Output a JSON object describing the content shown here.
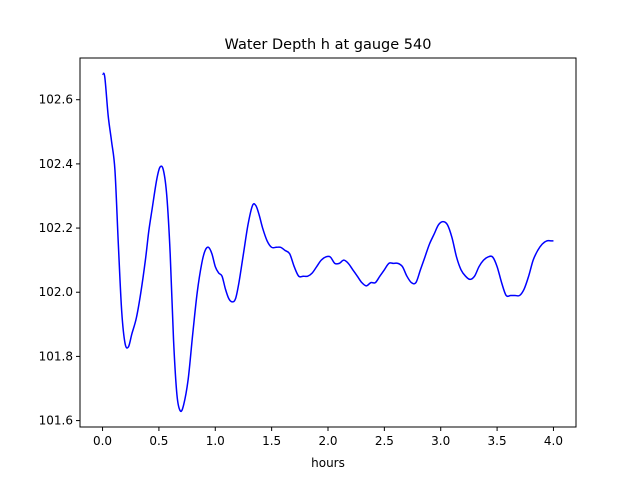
{
  "chart_data": {
    "type": "line",
    "title": "Water Depth h at gauge 540",
    "xlabel": "hours",
    "ylabel": "",
    "xlim": [
      -0.2,
      4.2
    ],
    "ylim": [
      101.58,
      102.73
    ],
    "xticks": [
      0.0,
      0.5,
      1.0,
      1.5,
      2.0,
      2.5,
      3.0,
      3.5,
      4.0
    ],
    "xtick_labels": [
      "0.0",
      "0.5",
      "1.0",
      "1.5",
      "2.0",
      "2.5",
      "3.0",
      "3.5",
      "4.0"
    ],
    "yticks": [
      101.6,
      101.8,
      102.0,
      102.2,
      102.4,
      102.6
    ],
    "ytick_labels": [
      "101.6",
      "101.8",
      "102.0",
      "102.2",
      "102.4",
      "102.6"
    ],
    "grid": false,
    "legend": false,
    "series": [
      {
        "color": "#0000ff",
        "points": [
          [
            0.0,
            102.68
          ],
          [
            0.02,
            102.67
          ],
          [
            0.05,
            102.55
          ],
          [
            0.08,
            102.47
          ],
          [
            0.11,
            102.38
          ],
          [
            0.14,
            102.15
          ],
          [
            0.17,
            101.94
          ],
          [
            0.2,
            101.84
          ],
          [
            0.23,
            101.83
          ],
          [
            0.26,
            101.87
          ],
          [
            0.3,
            101.92
          ],
          [
            0.34,
            102.0
          ],
          [
            0.38,
            102.1
          ],
          [
            0.41,
            102.19
          ],
          [
            0.44,
            102.26
          ],
          [
            0.48,
            102.35
          ],
          [
            0.51,
            102.39
          ],
          [
            0.54,
            102.38
          ],
          [
            0.57,
            102.3
          ],
          [
            0.6,
            102.12
          ],
          [
            0.63,
            101.85
          ],
          [
            0.66,
            101.68
          ],
          [
            0.69,
            101.63
          ],
          [
            0.72,
            101.65
          ],
          [
            0.76,
            101.73
          ],
          [
            0.8,
            101.87
          ],
          [
            0.84,
            102.0
          ],
          [
            0.88,
            102.09
          ],
          [
            0.91,
            102.13
          ],
          [
            0.94,
            102.14
          ],
          [
            0.97,
            102.12
          ],
          [
            1.0,
            102.08
          ],
          [
            1.03,
            102.06
          ],
          [
            1.06,
            102.05
          ],
          [
            1.09,
            102.01
          ],
          [
            1.12,
            101.98
          ],
          [
            1.15,
            101.97
          ],
          [
            1.18,
            101.98
          ],
          [
            1.21,
            102.03
          ],
          [
            1.25,
            102.12
          ],
          [
            1.29,
            102.21
          ],
          [
            1.33,
            102.27
          ],
          [
            1.36,
            102.27
          ],
          [
            1.39,
            102.24
          ],
          [
            1.42,
            102.2
          ],
          [
            1.46,
            102.16
          ],
          [
            1.5,
            102.14
          ],
          [
            1.54,
            102.14
          ],
          [
            1.58,
            102.14
          ],
          [
            1.62,
            102.13
          ],
          [
            1.66,
            102.12
          ],
          [
            1.7,
            102.08
          ],
          [
            1.74,
            102.05
          ],
          [
            1.78,
            102.05
          ],
          [
            1.82,
            102.05
          ],
          [
            1.86,
            102.06
          ],
          [
            1.9,
            102.08
          ],
          [
            1.94,
            102.1
          ],
          [
            1.98,
            102.11
          ],
          [
            2.02,
            102.11
          ],
          [
            2.06,
            102.09
          ],
          [
            2.1,
            102.09
          ],
          [
            2.14,
            102.1
          ],
          [
            2.18,
            102.09
          ],
          [
            2.22,
            102.07
          ],
          [
            2.26,
            102.05
          ],
          [
            2.3,
            102.03
          ],
          [
            2.34,
            102.02
          ],
          [
            2.38,
            102.03
          ],
          [
            2.42,
            102.03
          ],
          [
            2.46,
            102.05
          ],
          [
            2.5,
            102.07
          ],
          [
            2.54,
            102.09
          ],
          [
            2.58,
            102.09
          ],
          [
            2.62,
            102.09
          ],
          [
            2.66,
            102.08
          ],
          [
            2.7,
            102.05
          ],
          [
            2.74,
            102.03
          ],
          [
            2.78,
            102.03
          ],
          [
            2.82,
            102.07
          ],
          [
            2.86,
            102.11
          ],
          [
            2.9,
            102.15
          ],
          [
            2.94,
            102.18
          ],
          [
            2.98,
            102.21
          ],
          [
            3.02,
            102.22
          ],
          [
            3.06,
            102.21
          ],
          [
            3.1,
            102.17
          ],
          [
            3.14,
            102.11
          ],
          [
            3.18,
            102.07
          ],
          [
            3.22,
            102.05
          ],
          [
            3.26,
            102.04
          ],
          [
            3.3,
            102.05
          ],
          [
            3.34,
            102.08
          ],
          [
            3.38,
            102.1
          ],
          [
            3.42,
            102.11
          ],
          [
            3.46,
            102.11
          ],
          [
            3.5,
            102.08
          ],
          [
            3.54,
            102.03
          ],
          [
            3.58,
            101.99
          ],
          [
            3.62,
            101.99
          ],
          [
            3.66,
            101.99
          ],
          [
            3.7,
            101.99
          ],
          [
            3.74,
            102.01
          ],
          [
            3.78,
            102.05
          ],
          [
            3.82,
            102.1
          ],
          [
            3.86,
            102.13
          ],
          [
            3.9,
            102.15
          ],
          [
            3.94,
            102.16
          ],
          [
            3.98,
            102.16
          ],
          [
            4.0,
            102.16
          ]
        ]
      }
    ]
  }
}
